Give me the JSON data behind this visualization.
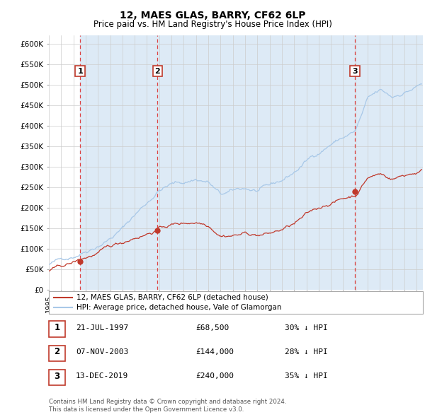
{
  "title": "12, MAES GLAS, BARRY, CF62 6LP",
  "subtitle": "Price paid vs. HM Land Registry's House Price Index (HPI)",
  "legend_label_red": "12, MAES GLAS, BARRY, CF62 6LP (detached house)",
  "legend_label_blue": "HPI: Average price, detached house, Vale of Glamorgan",
  "footer_line1": "Contains HM Land Registry data © Crown copyright and database right 2024.",
  "footer_line2": "This data is licensed under the Open Government Licence v3.0.",
  "sales": [
    {
      "label": "1",
      "date": "21-JUL-1997",
      "price": 68500,
      "note": "30% ↓ HPI",
      "date_num": 1997.55
    },
    {
      "label": "2",
      "date": "07-NOV-2003",
      "price": 144000,
      "note": "28% ↓ HPI",
      "date_num": 2003.85
    },
    {
      "label": "3",
      "date": "13-DEC-2019",
      "price": 240000,
      "note": "35% ↓ HPI",
      "date_num": 2019.95
    }
  ],
  "hpi_color": "#a8c8e8",
  "price_color": "#c0392b",
  "bg_color": "#ddeaf6",
  "plot_bg": "#ffffff",
  "grid_color": "#cccccc",
  "dashed_line_color": "#dd4444",
  "ylim": [
    0,
    620000
  ],
  "xlim_start": 1995.0,
  "xlim_end": 2025.5,
  "yticks": [
    0,
    50000,
    100000,
    150000,
    200000,
    250000,
    300000,
    350000,
    400000,
    450000,
    500000,
    550000,
    600000
  ]
}
